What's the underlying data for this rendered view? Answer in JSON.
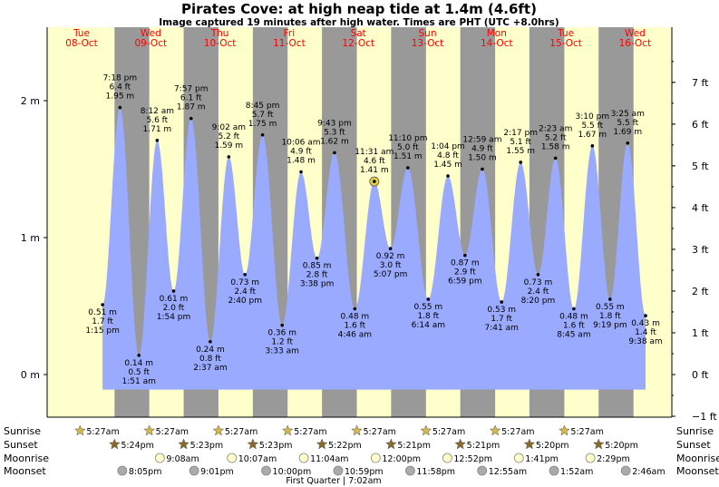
{
  "chart_data": {
    "type": "area",
    "title": "Pirates Cove: at high  neap tide at 1.4m (4.6ft)",
    "subtitle": "Image captured 19 minutes after high water. Times are PHT (UTC +8.0hrs)",
    "days": [
      {
        "dow": "Tue",
        "date": "08-Oct"
      },
      {
        "dow": "Wed",
        "date": "09-Oct"
      },
      {
        "dow": "Thu",
        "date": "10-Oct"
      },
      {
        "dow": "Fri",
        "date": "11-Oct"
      },
      {
        "dow": "Sat",
        "date": "12-Oct"
      },
      {
        "dow": "Sun",
        "date": "13-Oct"
      },
      {
        "dow": "Mon",
        "date": "14-Oct"
      },
      {
        "dow": "Tue",
        "date": "15-Oct"
      },
      {
        "dow": "Wed",
        "date": "16-Oct"
      }
    ],
    "ylim_m": [
      -0.45,
      2.35
    ],
    "y_ticks_m": [
      "2 m",
      "1 m",
      "0 m"
    ],
    "y_ticks_ft": [
      "7 ft",
      "6 ft",
      "5 ft",
      "4 ft",
      "3 ft",
      "2 ft",
      "1 ft",
      "0 ft",
      "−1 ft"
    ],
    "tides": [
      {
        "time": "1:15 pm",
        "m": 0.51,
        "m_label": "0.51 m",
        "ft_label": "1.7 ft",
        "type": "low"
      },
      {
        "time": "7:18 pm",
        "m": 1.95,
        "m_label": "1.95 m",
        "ft_label": "6.4 ft",
        "type": "high"
      },
      {
        "time": "1:51 am",
        "m": 0.14,
        "m_label": "0.14 m",
        "ft_label": "0.5 ft",
        "type": "low"
      },
      {
        "time": "8:12 am",
        "m": 1.71,
        "m_label": "1.71 m",
        "ft_label": "5.6 ft",
        "type": "high"
      },
      {
        "time": "1:54 pm",
        "m": 0.61,
        "m_label": "0.61 m",
        "ft_label": "2.0 ft",
        "type": "low"
      },
      {
        "time": "7:57 pm",
        "m": 1.87,
        "m_label": "1.87 m",
        "ft_label": "6.1 ft",
        "type": "high"
      },
      {
        "time": "2:37 am",
        "m": 0.24,
        "m_label": "0.24 m",
        "ft_label": "0.8 ft",
        "type": "low"
      },
      {
        "time": "9:02 am",
        "m": 1.59,
        "m_label": "1.59 m",
        "ft_label": "5.2 ft",
        "type": "high"
      },
      {
        "time": "2:40 pm",
        "m": 0.73,
        "m_label": "0.73 m",
        "ft_label": "2.4 ft",
        "type": "low"
      },
      {
        "time": "8:45 pm",
        "m": 1.75,
        "m_label": "1.75 m",
        "ft_label": "5.7 ft",
        "type": "high"
      },
      {
        "time": "3:33 am",
        "m": 0.36,
        "m_label": "0.36 m",
        "ft_label": "1.2 ft",
        "type": "low"
      },
      {
        "time": "10:06 am",
        "m": 1.48,
        "m_label": "1.48 m",
        "ft_label": "4.9 ft",
        "type": "high"
      },
      {
        "time": "3:38 pm",
        "m": 0.85,
        "m_label": "0.85 m",
        "ft_label": "2.8 ft",
        "type": "low"
      },
      {
        "time": "9:43 pm",
        "m": 1.62,
        "m_label": "1.62 m",
        "ft_label": "5.3 ft",
        "type": "high"
      },
      {
        "time": "4:46 am",
        "m": 0.48,
        "m_label": "0.48 m",
        "ft_label": "1.6 ft",
        "type": "low"
      },
      {
        "time": "11:31 am",
        "m": 1.41,
        "m_label": "1.41 m",
        "ft_label": "4.6 ft",
        "type": "high",
        "current": true
      },
      {
        "time": "5:07 pm",
        "m": 0.92,
        "m_label": "0.92 m",
        "ft_label": "3.0 ft",
        "type": "low"
      },
      {
        "time": "11:10 pm",
        "m": 1.51,
        "m_label": "1.51 m",
        "ft_label": "5.0 ft",
        "type": "high"
      },
      {
        "time": "6:14 am",
        "m": 0.55,
        "m_label": "0.55 m",
        "ft_label": "1.8 ft",
        "type": "low"
      },
      {
        "time": "1:04 pm",
        "m": 1.45,
        "m_label": "1.45 m",
        "ft_label": "4.8 ft",
        "type": "high"
      },
      {
        "time": "6:59 pm",
        "m": 0.87,
        "m_label": "0.87 m",
        "ft_label": "2.9 ft",
        "type": "low"
      },
      {
        "time": "12:59 am",
        "m": 1.5,
        "m_label": "1.50 m",
        "ft_label": "4.9 ft",
        "type": "high"
      },
      {
        "time": "7:41 am",
        "m": 0.53,
        "m_label": "0.53 m",
        "ft_label": "1.7 ft",
        "type": "low"
      },
      {
        "time": "2:17 pm",
        "m": 1.55,
        "m_label": "1.55 m",
        "ft_label": "5.1 ft",
        "type": "high"
      },
      {
        "time": "8:20 pm",
        "m": 0.73,
        "m_label": "0.73 m",
        "ft_label": "2.4 ft",
        "type": "low"
      },
      {
        "time": "2:23 am",
        "m": 1.58,
        "m_label": "1.58 m",
        "ft_label": "5.2 ft",
        "type": "high"
      },
      {
        "time": "8:45 am",
        "m": 0.48,
        "m_label": "0.48 m",
        "ft_label": "1.6 ft",
        "type": "low"
      },
      {
        "time": "3:10 pm",
        "m": 1.67,
        "m_label": "1.67 m",
        "ft_label": "5.5 ft",
        "type": "high"
      },
      {
        "time": "9:19 pm",
        "m": 0.55,
        "m_label": "0.55 m",
        "ft_label": "1.8 ft",
        "type": "low"
      },
      {
        "time": "3:25 am",
        "m": 1.69,
        "m_label": "1.69 m",
        "ft_label": "5.5 ft",
        "type": "high"
      },
      {
        "time": "9:38 am",
        "m": 0.43,
        "m_label": "0.43 m",
        "ft_label": "1.4 ft",
        "type": "low"
      }
    ],
    "astro_rows": [
      {
        "label": "Sunrise",
        "icon": "sun-icon",
        "times": [
          "5:27am",
          "5:27am",
          "5:27am",
          "5:27am",
          "5:27am",
          "5:27am",
          "5:27am",
          "5:27am"
        ]
      },
      {
        "label": "Sunset",
        "icon": "sunset-icon",
        "times": [
          "5:24pm",
          "5:23pm",
          "5:23pm",
          "5:22pm",
          "5:21pm",
          "5:21pm",
          "5:20pm",
          "5:20pm"
        ]
      },
      {
        "label": "Moonrise",
        "icon": "moonrise-icon",
        "times": [
          "9:08am",
          "10:07am",
          "11:04am",
          "12:00pm",
          "12:52pm",
          "1:41pm",
          "2:29pm"
        ]
      },
      {
        "label": "Moonset",
        "icon": "moonset-icon",
        "times": [
          "8:05pm",
          "9:01pm",
          "10:00pm",
          "10:59pm",
          "11:58pm",
          "12:55am",
          "1:52am",
          "2:46am"
        ]
      }
    ],
    "moon_phase_note": "First Quarter | 7:02am",
    "colors": {
      "day_bg": "#ffffcc",
      "night_bg": "#999999",
      "water": "#99aaff",
      "day_header": "#ff0000",
      "sun_star": "#d4b84a",
      "sunset_star": "#8a6a2a",
      "moonrise": "#ffffcc",
      "moonset": "#aaaaaa",
      "current_marker": "#e8d23a"
    }
  }
}
